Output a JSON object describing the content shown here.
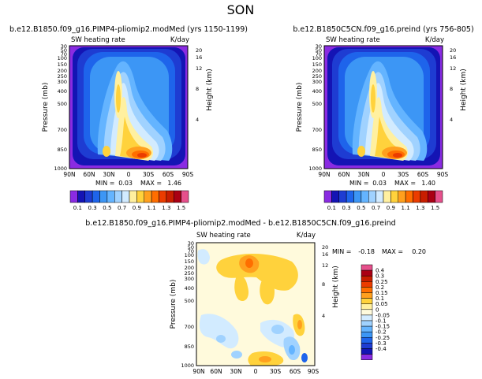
{
  "figure": {
    "season": "SON"
  },
  "chart_data": [
    {
      "type": "heatmap",
      "title": "b.e12.B1850.f09_g16.PIMP4-pliomip2.modMed (yrs 1150-1199)",
      "field_label": "SW heating rate",
      "units": "K/day",
      "ylabel": "Pressure (mb)",
      "ylabel_right": "Height (km)",
      "x_ticks": [
        "90N",
        "60N",
        "30N",
        "0",
        "30S",
        "60S",
        "90S"
      ],
      "y_ticks": [
        "30",
        "50",
        "70",
        "100",
        "150",
        "200",
        "250",
        "300",
        "400",
        "500",
        "700",
        "850",
        "1000"
      ],
      "y_ticks_right": [
        "20",
        "16",
        "12",
        "8",
        "4"
      ],
      "min": "0.03",
      "max": "1.46",
      "stats_text": {
        "min_label": "MIN =",
        "min": "0.03",
        "max_label": "MAX =",
        "max": "1.46"
      }
    },
    {
      "type": "heatmap",
      "title": "b.e12.B1850C5CN.f09_g16.preind (yrs 756-805)",
      "field_label": "SW heating rate",
      "units": "K/day",
      "ylabel": "Pressure (mb)",
      "ylabel_right": "Height (km)",
      "x_ticks": [
        "90N",
        "60N",
        "30N",
        "0",
        "30S",
        "60S",
        "90S"
      ],
      "y_ticks": [
        "30",
        "50",
        "70",
        "100",
        "150",
        "200",
        "250",
        "300",
        "400",
        "500",
        "700",
        "850",
        "1000"
      ],
      "y_ticks_right": [
        "20",
        "16",
        "12",
        "8",
        "4"
      ],
      "min": "0.03",
      "max": "1.40",
      "stats_text": {
        "min_label": "MIN =",
        "min": "0.03",
        "max_label": "MAX =",
        "max": "1.40"
      }
    },
    {
      "type": "heatmap",
      "title": "b.e12.B1850.f09_g16.PIMP4-pliomip2.modMed - b.e12.B1850C5CN.f09_g16.preind",
      "field_label": "SW heating rate",
      "units": "K/day",
      "ylabel": "Pressure (mb)",
      "ylabel_right": "Height (km)",
      "x_ticks": [
        "90N",
        "60N",
        "30N",
        "0",
        "30S",
        "60S",
        "90S"
      ],
      "y_ticks": [
        "30",
        "50",
        "70",
        "100",
        "150",
        "200",
        "250",
        "300",
        "400",
        "500",
        "700",
        "850",
        "1000"
      ],
      "y_ticks_right": [
        "20",
        "16",
        "12",
        "8",
        "4"
      ],
      "min": "-0.18",
      "max": "0.20",
      "stats_text": {
        "min_label": "MIN =",
        "min": "-0.18",
        "max_label": "MAX =",
        "max": "0.20"
      }
    }
  ],
  "colorbar_abs": {
    "labels": [
      "0.1",
      "0.3",
      "0.5",
      "0.7",
      "0.9",
      "1.1",
      "1.3",
      "1.5"
    ],
    "colors": [
      "#8a2be2",
      "#1414b4",
      "#1e3cd2",
      "#1e64eb",
      "#3c96f5",
      "#64b4ff",
      "#a0d2ff",
      "#d2ebff",
      "#fff0a0",
      "#ffd23c",
      "#ffa01e",
      "#ff6e00",
      "#eb3c00",
      "#c81e00",
      "#aa0014",
      "#e6508c"
    ]
  },
  "colorbar_diff": {
    "labels": [
      "0.4",
      "0.3",
      "0.25",
      "0.2",
      "0.15",
      "0.1",
      "0.05",
      "0",
      "-0.05",
      "-0.1",
      "-0.15",
      "-0.2",
      "-0.25",
      "-0.3",
      "-0.4"
    ],
    "colors": [
      "#e6508c",
      "#aa0014",
      "#c81e00",
      "#eb3c00",
      "#ff6e00",
      "#ffa01e",
      "#ffd23c",
      "#fff0a0",
      "#fffadc",
      "#d2ebff",
      "#a0d2ff",
      "#64b4ff",
      "#3c96f5",
      "#1e64eb",
      "#1e3cd2",
      "#1414b4",
      "#8a2be2"
    ]
  }
}
